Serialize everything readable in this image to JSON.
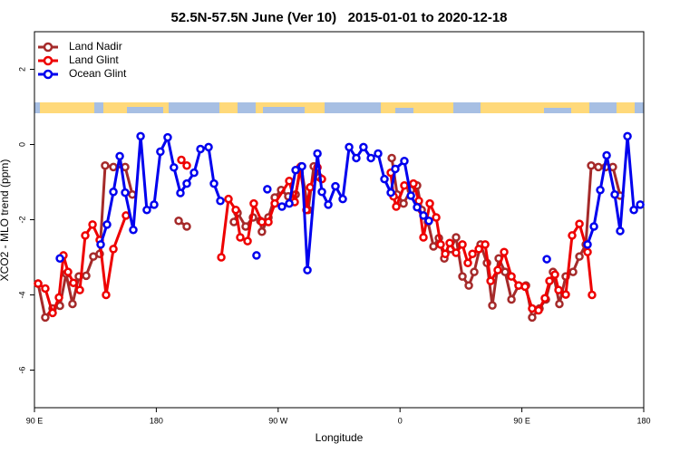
{
  "chart_data": {
    "type": "line",
    "title": "52.5N-57.5N June (Ver 10)   2015-01-01 to 2020-12-18",
    "x_label": "Longitude",
    "y_label": "XCO2 - MLO trend (ppm)",
    "xlim": [
      90,
      540
    ],
    "xticks": [
      {
        "value": 90,
        "label": "90 E"
      },
      {
        "value": 180,
        "label": "180"
      },
      {
        "value": 270,
        "label": "90 W"
      },
      {
        "value": 360,
        "label": "0"
      },
      {
        "value": 450,
        "label": "90 E"
      },
      {
        "value": 540,
        "label": "180"
      }
    ],
    "ylim": [
      -7,
      3
    ],
    "yticks": [
      -6,
      -4,
      -2,
      0,
      2
    ],
    "legend": "top-left",
    "series": [
      {
        "name": "Land Nadir",
        "color": "#a52a2a",
        "x": [
          92.7,
          98,
          103.4,
          108.8,
          113.4,
          118.1,
          122.8,
          128.2,
          133.5,
          138.2,
          142.2,
          148.3,
          157,
          162.3,
          null,
          196.5,
          202.5,
          null,
          237.3,
          240,
          246,
          251.4,
          256.8,
          258,
          262.8,
          267.5,
          272.2,
          277.5,
          282.9,
          286.9,
          292.2,
          296.3,
          300.3,
          null,
          353.9,
          357.9,
          362.6,
          368,
          372.6,
          376,
          380.6,
          384.7,
          388.7,
          392.7,
          397.4,
          401.4,
          406.1,
          410.8,
          414.8,
          419.5,
          424.2,
          428.2,
          432.9,
          437.6,
          442.3,
          447.6,
          453,
          457.6,
          463,
          467.7,
          473,
          477.7,
          482.4,
          487.8,
          492.5,
          497.2,
          501.2,
          506.5,
          511.9,
          517.2,
          522.6
        ],
        "values": [
          -3.7,
          -4.6,
          -4.36,
          -4.29,
          -3.44,
          -4.24,
          -3.51,
          -3.49,
          -2.98,
          -2.91,
          -0.56,
          -0.6,
          -0.6,
          -1.33,
          null,
          -2.03,
          -2.18,
          null,
          -2.06,
          -1.82,
          -2.18,
          -1.94,
          -2.03,
          -2.32,
          -1.94,
          -1.41,
          -1.21,
          -1.38,
          -1.33,
          -0.58,
          -1.74,
          -0.58,
          -0.87,
          null,
          -0.36,
          -1.33,
          -1.57,
          -1.21,
          -1.09,
          -1.74,
          -2.06,
          -2.71,
          -2.49,
          -3.03,
          -2.78,
          -2.47,
          -3.51,
          -3.75,
          -3.39,
          -2.66,
          -3.15,
          -4.28,
          -3.03,
          -3.39,
          -4.12,
          -3.75,
          -3.75,
          -4.6,
          -4.36,
          -4.12,
          -3.39,
          -4.24,
          -3.51,
          -3.39,
          -2.98,
          -2.66,
          -0.56,
          -0.6,
          -0.6,
          -0.6,
          -1.36
        ]
      },
      {
        "name": "Land Glint",
        "color": "#ee0000",
        "x": [
          92.7,
          98,
          103.4,
          108.1,
          111.4,
          114.8,
          118.8,
          123.5,
          127.5,
          132.9,
          138.2,
          142.9,
          148.3,
          157.6,
          null,
          198.5,
          202.5,
          null,
          228,
          233.3,
          238.7,
          242,
          247.4,
          252,
          258,
          262.8,
          267.5,
          278.2,
          282.2,
          286.2,
          290.9,
          293.6,
          299,
          302.3,
          null,
          353.2,
          355.2,
          357.2,
          363.2,
          369.9,
          373.9,
          377.3,
          382,
          386.7,
          390,
          393.4,
          396.7,
          401.4,
          406.1,
          410.1,
          413.5,
          418.2,
          422.9,
          426.9,
          432.2,
          436.9,
          442.3,
          447.6,
          452.3,
          457.6,
          462.3,
          467,
          470.4,
          474.4,
          477.1,
          482.4,
          487.1,
          492.5,
          498.5,
          501.8
        ],
        "values": [
          -3.7,
          -3.83,
          -4.48,
          -4.07,
          -2.95,
          -3.39,
          -3.68,
          -3.87,
          -2.42,
          -2.13,
          -2.54,
          -4.0,
          -2.78,
          -1.89,
          null,
          -0.41,
          -0.56,
          null,
          -3.0,
          -1.45,
          -1.74,
          -2.47,
          -2.57,
          -1.57,
          -2.06,
          -2.06,
          -1.57,
          -0.97,
          -1.53,
          -0.61,
          -1.74,
          -1.14,
          -0.61,
          -0.92,
          null,
          -0.75,
          -1.38,
          -1.65,
          -1.09,
          -1.04,
          -1.5,
          -2.47,
          -1.57,
          -1.94,
          -2.66,
          -2.91,
          -2.62,
          -2.88,
          -2.66,
          -3.15,
          -2.91,
          -2.78,
          -2.66,
          -3.63,
          -3.34,
          -2.86,
          -3.51,
          -3.75,
          -3.78,
          -4.36,
          -4.41,
          -4.09,
          -3.63,
          -3.46,
          -3.87,
          -3.99,
          -2.42,
          -2.11,
          -2.86,
          -4.0
        ]
      },
      {
        "name": "Ocean Glint",
        "color": "#0000ee",
        "x": [
          108.8,
          null,
          138.9,
          143.6,
          148.3,
          153,
          157,
          163,
          168.4,
          173,
          178.4,
          183,
          188.4,
          193,
          197.8,
          202.5,
          207.9,
          212.6,
          218.6,
          222.6,
          227.3,
          null,
          254,
          null,
          262,
          null,
          272.8,
          278.2,
          282.9,
          287.6,
          291.6,
          299,
          302.3,
          307,
          312.3,
          317.7,
          322.4,
          327.7,
          333,
          338.5,
          343.8,
          348.5,
          353.2,
          356.5,
          363.2,
          368,
          372.6,
          377.3,
          381.3,
          null,
          468.4,
          null,
          498.5,
          503.2,
          507.9,
          512.6,
          518.6,
          522.6,
          528,
          532.7,
          537.4
        ],
        "values": [
          -3.03,
          null,
          -2.66,
          -2.13,
          -1.26,
          -0.31,
          -1.28,
          -2.27,
          0.22,
          -1.74,
          -1.6,
          -0.19,
          0.19,
          -0.61,
          -1.29,
          -1.04,
          -0.75,
          -0.12,
          -0.07,
          -1.04,
          -1.5,
          null,
          -2.95,
          null,
          -1.19,
          null,
          -1.65,
          -1.57,
          -0.68,
          -0.58,
          -3.34,
          -0.24,
          -1.26,
          -1.6,
          -1.11,
          -1.45,
          -0.07,
          -0.36,
          -0.07,
          -0.36,
          -0.24,
          -0.92,
          -1.28,
          -0.65,
          -0.44,
          -1.36,
          -1.67,
          -1.89,
          -2.03,
          null,
          -3.05,
          null,
          -2.66,
          -2.18,
          -1.21,
          -0.29,
          -1.33,
          -2.3,
          0.22,
          -1.74,
          -1.6
        ]
      }
    ]
  }
}
